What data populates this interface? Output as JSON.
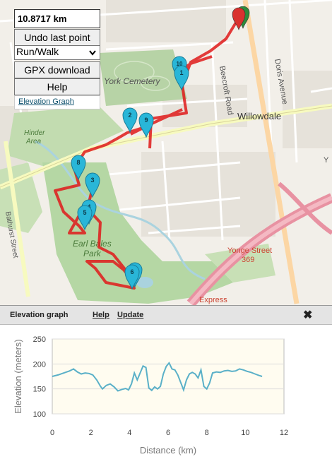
{
  "controls": {
    "distance": "10.8717 km",
    "undo_label": "Undo last point",
    "mode_selected": "Run/Walk",
    "gpx_label": "GPX download",
    "help_label": "Help",
    "elevation_link": "Elevation Graph"
  },
  "map": {
    "labels": {
      "york_cemetery": "York Cemetery",
      "beecroft_road": "Beecroft Road",
      "doris_avenue": "Doris Avenue",
      "willowdale": "Willowdale",
      "hinder_area_1": "Hinder",
      "hinder_area_2": "Area",
      "bathurst_street": "Bathurst Street",
      "earl_bales_1": "Earl Bales",
      "earl_bales_2": "Park",
      "yonge_street": "Yonge Street",
      "yonge_num": "369",
      "express": "Express",
      "edge_label": "Y"
    },
    "markers": [
      {
        "label": "10"
      },
      {
        "label": "1"
      },
      {
        "label": "2"
      },
      {
        "label": "9"
      },
      {
        "label": "8"
      },
      {
        "label": "3"
      },
      {
        "label": "4"
      },
      {
        "label": "5"
      },
      {
        "label": "7"
      },
      {
        "label": "6"
      }
    ],
    "route_color": "#e01b1b",
    "marker_color": "#29b6d8",
    "start_color": "#d9322f",
    "end_color": "#2e8b3a"
  },
  "panel": {
    "title": "Elevation graph",
    "help": "Help",
    "update": "Update",
    "close": "✖"
  },
  "chart_data": {
    "type": "line",
    "xlabel": "Distance (km)",
    "ylabel": "Elevation (meters)",
    "xlim": [
      0,
      12
    ],
    "ylim": [
      100,
      250
    ],
    "xticks": [
      0,
      2,
      4,
      6,
      8,
      10,
      12
    ],
    "yticks": [
      100,
      150,
      200,
      250
    ],
    "series_color": "#5ab0c8",
    "x": [
      0,
      0.3,
      0.6,
      0.9,
      1.1,
      1.3,
      1.5,
      1.7,
      1.9,
      2.1,
      2.3,
      2.5,
      2.6,
      2.8,
      3.0,
      3.2,
      3.4,
      3.6,
      3.8,
      3.95,
      4.1,
      4.25,
      4.4,
      4.55,
      4.7,
      4.85,
      5.0,
      5.15,
      5.3,
      5.45,
      5.6,
      5.75,
      5.9,
      6.05,
      6.2,
      6.35,
      6.5,
      6.65,
      6.8,
      6.95,
      7.1,
      7.25,
      7.4,
      7.55,
      7.7,
      7.85,
      8.0,
      8.15,
      8.3,
      8.5,
      8.7,
      8.9,
      9.1,
      9.3,
      9.5,
      9.7,
      9.9,
      10.1,
      10.3,
      10.5,
      10.7,
      10.87
    ],
    "y": [
      175,
      178,
      182,
      186,
      190,
      184,
      180,
      182,
      181,
      178,
      168,
      155,
      150,
      157,
      160,
      154,
      146,
      149,
      151,
      148,
      160,
      182,
      168,
      182,
      196,
      193,
      152,
      147,
      154,
      150,
      155,
      180,
      195,
      202,
      190,
      188,
      178,
      163,
      148,
      168,
      180,
      183,
      180,
      172,
      188,
      155,
      150,
      162,
      182,
      184,
      183,
      186,
      187,
      185,
      186,
      190,
      188,
      185,
      183,
      180,
      177,
      175
    ]
  }
}
